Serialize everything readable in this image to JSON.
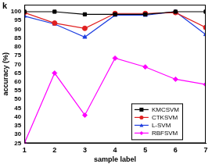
{
  "chart_data": {
    "type": "line",
    "title": "k",
    "x_label": "sample label",
    "y_label": "accuracy (%)",
    "x": [
      1,
      2,
      3,
      4,
      5,
      6,
      7
    ],
    "xlim": [
      1,
      7
    ],
    "xticks": [
      1,
      2,
      3,
      4,
      5,
      6,
      7
    ],
    "ylim": [
      25,
      104
    ],
    "yticks": [
      25,
      30,
      35,
      40,
      45,
      50,
      55,
      60,
      65,
      70,
      75,
      80,
      85,
      90,
      95,
      100
    ],
    "grid": false,
    "legend": "right",
    "series": [
      {
        "name": "KMCSVM",
        "color": "#000000",
        "marker": "square",
        "line_style": "solid",
        "values": [
          100,
          100,
          98.5,
          98.5,
          98.5,
          100,
          100
        ]
      },
      {
        "name": "CTKSVM",
        "color": "#e02020",
        "marker": "circle",
        "line_style": "solid",
        "values": [
          99.5,
          93.5,
          90.5,
          99,
          99,
          99.5,
          91
        ]
      },
      {
        "name": "L-SVM",
        "color": "#1f3fe0",
        "marker": "triangle",
        "line_style": "solid",
        "values": [
          97.5,
          93,
          85.5,
          98,
          98,
          100,
          87
        ]
      },
      {
        "name": "RBFSVM",
        "color": "#ff00ff",
        "marker": "diamond",
        "line_style": "solid",
        "values": [
          25,
          65,
          41,
          73.5,
          68.5,
          61.5,
          58.5
        ]
      }
    ]
  }
}
